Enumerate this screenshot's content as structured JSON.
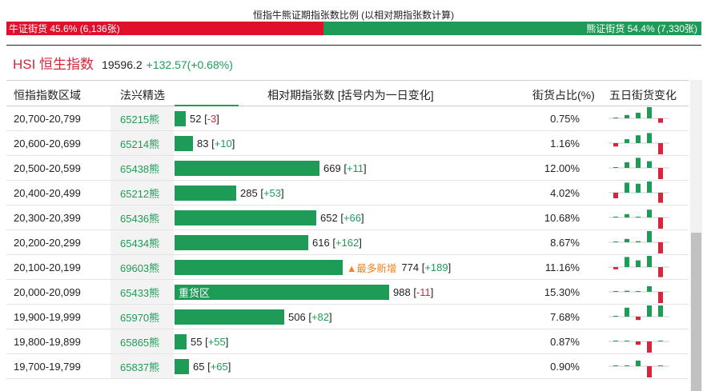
{
  "header": {
    "title": "恒指牛熊证期指张数比例 (以相对期指张数计算)",
    "bull": {
      "label": "牛证街货 45.6% (6,136张)",
      "fraction": 0.456,
      "color": "#e0102b"
    },
    "bear": {
      "label": "熊证街货 54.4% (7,330张)",
      "fraction": 0.544,
      "color": "#1e9b57"
    }
  },
  "index": {
    "name": "HSI 恒生指数",
    "price": "19596.2",
    "change": "+132.57(+0.68%)"
  },
  "table": {
    "columns": {
      "range": "恒指指数区域",
      "code": "法兴精选",
      "contracts": "相对期指张数 [括号内为一日变化]",
      "share": "街货占比(%)",
      "five_day": "五日街货变化"
    },
    "max_contracts": 988,
    "rows": [
      {
        "range": "20,700-20,799",
        "code": "65215熊",
        "value": 52,
        "value_text": "52",
        "change_text": "-3",
        "change_dir": "dn",
        "share": "0.75%",
        "tag": "",
        "hot": "",
        "spark": [
          0.05,
          0.3,
          0.5,
          1.0,
          -0.4,
          0.3
        ]
      },
      {
        "range": "20,600-20,699",
        "code": "65214熊",
        "value": 83,
        "value_text": "83",
        "change_text": "+10",
        "change_dir": "up",
        "share": "1.16%",
        "tag": "",
        "hot": "",
        "spark": [
          -0.3,
          0.35,
          0.7,
          0.9,
          -1.0,
          0.2
        ]
      },
      {
        "range": "20,500-20,599",
        "code": "65438熊",
        "value": 669,
        "value_text": "669",
        "change_text": "+11",
        "change_dir": "up",
        "share": "12.00%",
        "tag": "",
        "hot": "",
        "spark": [
          0.05,
          0.5,
          0.9,
          0.6,
          -1.0,
          0.1
        ]
      },
      {
        "range": "20,400-20,499",
        "code": "65212熊",
        "value": 285,
        "value_text": "285",
        "change_text": "+53",
        "change_dir": "up",
        "share": "4.02%",
        "tag": "",
        "hot": "",
        "spark": [
          -0.5,
          0.9,
          0.8,
          1.0,
          -0.9,
          0.5
        ]
      },
      {
        "range": "20,300-20,399",
        "code": "65436熊",
        "value": 652,
        "value_text": "652",
        "change_text": "+66",
        "change_dir": "up",
        "share": "10.68%",
        "tag": "",
        "hot": "",
        "spark": [
          0.05,
          0.3,
          0.05,
          0.7,
          -1.0,
          -0.3
        ]
      },
      {
        "range": "20,200-20,299",
        "code": "65434熊",
        "value": 616,
        "value_text": "616",
        "change_text": "+162",
        "change_dir": "up",
        "share": "8.67%",
        "tag": "",
        "hot": "",
        "spark": [
          0.05,
          0.3,
          0.1,
          1.0,
          -1.0,
          0.2
        ]
      },
      {
        "range": "20,100-20,199",
        "code": "69603熊",
        "value": 774,
        "value_text": "774",
        "change_text": "+189",
        "change_dir": "up",
        "share": "11.16%",
        "tag": "",
        "hot": "▲最多新增",
        "spark": [
          -0.2,
          0.9,
          0.6,
          1.0,
          -0.9,
          -0.3
        ]
      },
      {
        "range": "20,000-20,099",
        "code": "65433熊",
        "value": 988,
        "value_text": "988",
        "change_text": "-11",
        "change_dir": "dn",
        "share": "15.30%",
        "tag": "重货区",
        "hot": "",
        "spark": [
          0.05,
          0.1,
          0.05,
          0.5,
          -1.0,
          -0.9
        ]
      },
      {
        "range": "19,900-19,999",
        "code": "65970熊",
        "value": 506,
        "value_text": "506",
        "change_text": "+82",
        "change_dir": "up",
        "share": "7.68%",
        "tag": "",
        "hot": "",
        "spark": [
          0.05,
          0.8,
          -0.3,
          1.0,
          1.0,
          0.7
        ]
      },
      {
        "range": "19,800-19,899",
        "code": "65865熊",
        "value": 55,
        "value_text": "55",
        "change_text": "+55",
        "change_dir": "up",
        "share": "0.87%",
        "tag": "",
        "hot": "",
        "spark": [
          0.05,
          0.05,
          -0.3,
          -1.0,
          0.05,
          0.1
        ]
      },
      {
        "range": "19,700-19,799",
        "code": "65837熊",
        "value": 65,
        "value_text": "65",
        "change_text": "+65",
        "change_dir": "up",
        "share": "0.90%",
        "tag": "",
        "hot": "",
        "spark": [
          0.05,
          0.05,
          0.5,
          -1.0,
          0.05,
          0.3
        ]
      }
    ]
  },
  "colors": {
    "up": "#1e9b57",
    "down": "#d6263b",
    "hot": "#f0831e"
  }
}
